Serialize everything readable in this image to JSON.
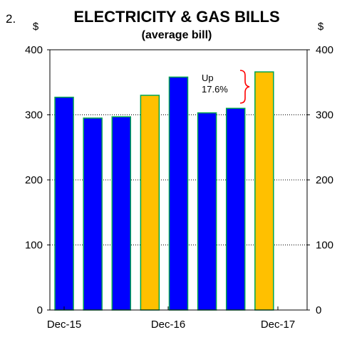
{
  "chart_data": {
    "type": "bar",
    "number": "2.",
    "title": "ELECTRICITY & GAS BILLS",
    "subtitle": "(average bill)",
    "y_unit_left": "$",
    "y_unit_right": "$",
    "ylim": [
      0,
      400
    ],
    "y_ticks": [
      "0",
      "100",
      "200",
      "300",
      "400"
    ],
    "grid": "dotted horizontal at 100, 200, 300",
    "x_tick_labels": [
      "Dec-15",
      "Dec-16",
      "Dec-17"
    ],
    "values": [
      327,
      295,
      297,
      330,
      358,
      303,
      310,
      366
    ],
    "highlight": [
      false,
      false,
      false,
      true,
      false,
      false,
      false,
      true
    ],
    "colors": {
      "regular": "#0000ff",
      "highlight": "#ffc000",
      "outline": "#00a550",
      "bracket": "#ff0000"
    },
    "annotation": {
      "line1": "Up",
      "line2": "17.6%"
    }
  }
}
